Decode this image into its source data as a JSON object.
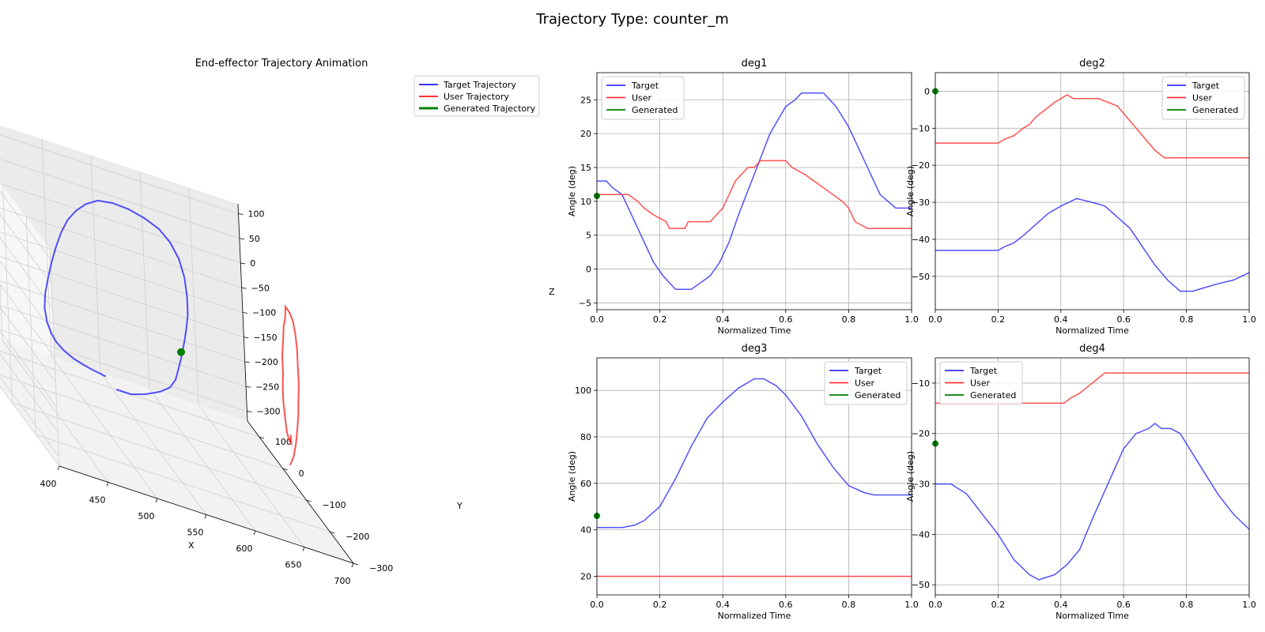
{
  "figure_title": "Trajectory Type: counter_m",
  "colors": {
    "target": "#3333ff",
    "user": "#ff3333",
    "generated": "#008000"
  },
  "chart_data": [
    {
      "id": "traj3d",
      "type": "line",
      "title": "End-effector Trajectory Animation",
      "xlabel": "X",
      "ylabel": "Y",
      "zlabel": "Z",
      "xlim": [
        400,
        700
      ],
      "ylim": [
        -300,
        150
      ],
      "zlim": [
        -320,
        120
      ],
      "xticks": [
        "400",
        "450",
        "500",
        "550",
        "600",
        "650",
        "700"
      ],
      "yticks": [
        "-300",
        "-200",
        "-100",
        "0",
        "100"
      ],
      "zticks": [
        "100",
        "50",
        "0",
        "-50",
        "-100",
        "-150",
        "-200",
        "-250",
        "-300"
      ],
      "legend": {
        "position": "top-right",
        "entries": [
          "Target Trajectory",
          "User Trajectory",
          "Generated Trajectory"
        ]
      },
      "series": [
        {
          "name": "Target Trajectory",
          "points3d": [
            [
              545,
              60,
              -300
            ],
            [
              560,
              60,
              -300
            ],
            [
              575,
              60,
              -290
            ],
            [
              588,
              50,
              -270
            ],
            [
              596,
              40,
              -250
            ],
            [
              600,
              30,
              -225
            ],
            [
              602,
              20,
              -190
            ],
            [
              603,
              10,
              -160
            ],
            [
              604,
              0,
              -125
            ],
            [
              604,
              -10,
              -95
            ],
            [
              604,
              -20,
              -60
            ],
            [
              603,
              -25,
              -20
            ],
            [
              600,
              -30,
              20
            ],
            [
              595,
              -30,
              55
            ],
            [
              588,
              -25,
              80
            ],
            [
              578,
              -20,
              98
            ],
            [
              566,
              -10,
              105
            ],
            [
              552,
              0,
              108
            ],
            [
              538,
              10,
              105
            ],
            [
              525,
              20,
              95
            ],
            [
              515,
              30,
              75
            ],
            [
              507,
              40,
              50
            ],
            [
              500,
              50,
              20
            ],
            [
              495,
              60,
              -15
            ],
            [
              491,
              70,
              -55
            ],
            [
              488,
              80,
              -95
            ],
            [
              486,
              90,
              -135
            ],
            [
              485,
              100,
              -170
            ],
            [
              486,
              110,
              -205
            ],
            [
              489,
              115,
              -235
            ],
            [
              494,
              120,
              -258
            ],
            [
              500,
              125,
              -275
            ],
            [
              508,
              125,
              -288
            ],
            [
              516,
              120,
              -295
            ],
            [
              524,
              115,
              -298
            ],
            [
              532,
              110,
              -300
            ],
            [
              538,
              105,
              -300
            ],
            [
              544,
              100,
              -300
            ]
          ]
        },
        {
          "name": "User Trajectory",
          "points3d": [
            [
              662,
              -200,
              -210
            ],
            [
              666,
              -200,
              -190
            ],
            [
              670,
              -195,
              -165
            ],
            [
              673,
              -190,
              -140
            ],
            [
              676,
              -185,
              -110
            ],
            [
              678,
              -180,
              -80
            ],
            [
              679,
              -180,
              -50
            ],
            [
              680,
              -175,
              -15
            ],
            [
              680,
              -175,
              20
            ],
            [
              679,
              -175,
              50
            ],
            [
              677,
              -175,
              75
            ],
            [
              674,
              -175,
              90
            ],
            [
              670,
              -175,
              100
            ],
            [
              668,
              -180,
              80
            ],
            [
              666,
              -180,
              60
            ],
            [
              664,
              -185,
              40
            ],
            [
              663,
              -185,
              20
            ],
            [
              662,
              -185,
              0
            ],
            [
              661,
              -190,
              -30
            ],
            [
              660,
              -190,
              -60
            ],
            [
              660,
              -190,
              -90
            ],
            [
              660,
              -195,
              -120
            ],
            [
              661,
              -195,
              -145
            ],
            [
              662,
              -200,
              -160
            ],
            [
              664,
              -200,
              -165
            ],
            [
              665,
              -195,
              -150
            ]
          ]
        },
        {
          "name": "Generated Trajectory",
          "points3d": [
            [
              600,
              0,
              -150
            ]
          ]
        }
      ]
    },
    {
      "id": "deg1",
      "type": "line",
      "title": "deg1",
      "xlabel": "Normalized Time",
      "ylabel": "Angle (deg)",
      "xlim": [
        0,
        1
      ],
      "ylim": [
        -6,
        29
      ],
      "xticks": [
        "0.0",
        "0.2",
        "0.4",
        "0.6",
        "0.8",
        "1.0"
      ],
      "yticks": [
        "-5",
        "0",
        "5",
        "10",
        "15",
        "20",
        "25"
      ],
      "legend": {
        "position": "top-left",
        "entries": [
          "Target",
          "User",
          "Generated"
        ]
      },
      "series": [
        {
          "name": "Target",
          "x": [
            0,
            0.03,
            0.05,
            0.08,
            0.1,
            0.12,
            0.15,
            0.18,
            0.21,
            0.23,
            0.25,
            0.3,
            0.33,
            0.36,
            0.39,
            0.42,
            0.45,
            0.5,
            0.55,
            0.6,
            0.63,
            0.65,
            0.72,
            0.76,
            0.8,
            0.85,
            0.9,
            0.95,
            1.0
          ],
          "y": [
            13,
            13,
            12,
            11,
            9,
            7,
            4,
            1,
            -1,
            -2,
            -3,
            -3,
            -2,
            -1,
            1,
            4,
            8,
            14,
            20,
            24,
            25,
            26,
            26,
            24,
            21,
            16,
            11,
            9,
            9
          ]
        },
        {
          "name": "User",
          "x": [
            0,
            0.1,
            0.13,
            0.15,
            0.18,
            0.22,
            0.23,
            0.28,
            0.29,
            0.36,
            0.38,
            0.4,
            0.42,
            0.44,
            0.46,
            0.48,
            0.5,
            0.52,
            0.55,
            0.6,
            0.62,
            0.66,
            0.69,
            0.72,
            0.75,
            0.78,
            0.8,
            0.82,
            0.86,
            1.0
          ],
          "y": [
            11,
            11,
            10,
            9,
            8,
            7,
            6,
            6,
            7,
            7,
            8,
            9,
            11,
            13,
            14,
            15,
            15,
            16,
            16,
            16,
            15,
            14,
            13,
            12,
            11,
            10,
            9,
            7,
            6,
            6
          ]
        },
        {
          "name": "Generated",
          "x": [
            0
          ],
          "y": [
            10.8
          ]
        }
      ]
    },
    {
      "id": "deg2",
      "type": "line",
      "title": "deg2",
      "xlabel": "Normalized Time",
      "ylabel": "Angle (deg)",
      "xlim": [
        0,
        1
      ],
      "ylim": [
        -59,
        5
      ],
      "xticks": [
        "0.0",
        "0.2",
        "0.4",
        "0.6",
        "0.8",
        "1.0"
      ],
      "yticks": [
        "0",
        "-10",
        "-20",
        "-30",
        "-40",
        "-50"
      ],
      "legend": {
        "position": "top-right",
        "entries": [
          "Target",
          "User",
          "Generated"
        ]
      },
      "series": [
        {
          "name": "Target",
          "x": [
            0,
            0.2,
            0.22,
            0.25,
            0.28,
            0.32,
            0.36,
            0.4,
            0.45,
            0.5,
            0.54,
            0.58,
            0.62,
            0.66,
            0.7,
            0.74,
            0.78,
            0.82,
            0.86,
            0.9,
            0.95,
            1.0
          ],
          "y": [
            -43,
            -43,
            -42,
            -41,
            -39,
            -36,
            -33,
            -31,
            -29,
            -30,
            -31,
            -34,
            -37,
            -42,
            -47,
            -51,
            -54,
            -54,
            -53,
            -52,
            -51,
            -49
          ]
        },
        {
          "name": "User",
          "x": [
            0,
            0.2,
            0.22,
            0.25,
            0.28,
            0.3,
            0.32,
            0.35,
            0.38,
            0.4,
            0.42,
            0.44,
            0.46,
            0.5,
            0.52,
            0.55,
            0.58,
            0.6,
            0.62,
            0.65,
            0.68,
            0.7,
            0.73,
            1.0
          ],
          "y": [
            -14,
            -14,
            -13,
            -12,
            -10,
            -9,
            -7,
            -5,
            -3,
            -2,
            -1,
            -2,
            -2,
            -2,
            -2,
            -3,
            -4,
            -6,
            -8,
            -11,
            -14,
            -16,
            -18,
            -18
          ]
        },
        {
          "name": "Generated",
          "x": [
            0
          ],
          "y": [
            0
          ]
        }
      ]
    },
    {
      "id": "deg3",
      "type": "line",
      "title": "deg3",
      "xlabel": "Normalized Time",
      "ylabel": "Angle (deg)",
      "xlim": [
        0,
        1
      ],
      "ylim": [
        12,
        114
      ],
      "xticks": [
        "0.0",
        "0.2",
        "0.4",
        "0.6",
        "0.8",
        "1.0"
      ],
      "yticks": [
        "20",
        "40",
        "60",
        "80",
        "100"
      ],
      "legend": {
        "position": "top-right",
        "entries": [
          "Target",
          "User",
          "Generated"
        ]
      },
      "series": [
        {
          "name": "Target",
          "x": [
            0,
            0.08,
            0.12,
            0.15,
            0.2,
            0.25,
            0.3,
            0.35,
            0.4,
            0.45,
            0.5,
            0.53,
            0.57,
            0.6,
            0.65,
            0.7,
            0.75,
            0.8,
            0.85,
            0.88,
            0.92,
            1.0
          ],
          "y": [
            41,
            41,
            42,
            44,
            50,
            62,
            76,
            88,
            95,
            101,
            105,
            105,
            102,
            98,
            89,
            77,
            67,
            59,
            56,
            55,
            55,
            55
          ]
        },
        {
          "name": "User",
          "x": [
            0,
            1.0
          ],
          "y": [
            20,
            20
          ]
        },
        {
          "name": "Generated",
          "x": [
            0
          ],
          "y": [
            46
          ]
        }
      ]
    },
    {
      "id": "deg4",
      "type": "line",
      "title": "deg4",
      "xlabel": "Normalized Time",
      "ylabel": "Angle (deg)",
      "xlim": [
        0,
        1
      ],
      "ylim": [
        -52,
        -5
      ],
      "xticks": [
        "0.0",
        "0.2",
        "0.4",
        "0.6",
        "0.8",
        "1.0"
      ],
      "yticks": [
        "-10",
        "-20",
        "-30",
        "-40",
        "-50"
      ],
      "legend": {
        "position": "top-left",
        "entries": [
          "Target",
          "User",
          "Generated"
        ]
      },
      "series": [
        {
          "name": "Target",
          "x": [
            0,
            0.05,
            0.1,
            0.15,
            0.2,
            0.25,
            0.3,
            0.33,
            0.38,
            0.42,
            0.46,
            0.5,
            0.55,
            0.6,
            0.64,
            0.68,
            0.7,
            0.72,
            0.75,
            0.78,
            0.82,
            0.86,
            0.9,
            0.95,
            1.0
          ],
          "y": [
            -30,
            -30,
            -32,
            -36,
            -40,
            -45,
            -48,
            -49,
            -48,
            -46,
            -43,
            -37,
            -30,
            -23,
            -20,
            -19,
            -18,
            -19,
            -19,
            -20,
            -24,
            -28,
            -32,
            -36,
            -39
          ]
        },
        {
          "name": "User",
          "x": [
            0,
            0.41,
            0.43,
            0.46,
            0.48,
            0.5,
            0.52,
            0.54,
            1.0
          ],
          "y": [
            -14,
            -14,
            -13,
            -12,
            -11,
            -10,
            -9,
            -8,
            -8
          ]
        },
        {
          "name": "Generated",
          "x": [
            0
          ],
          "y": [
            -22
          ]
        }
      ]
    }
  ]
}
